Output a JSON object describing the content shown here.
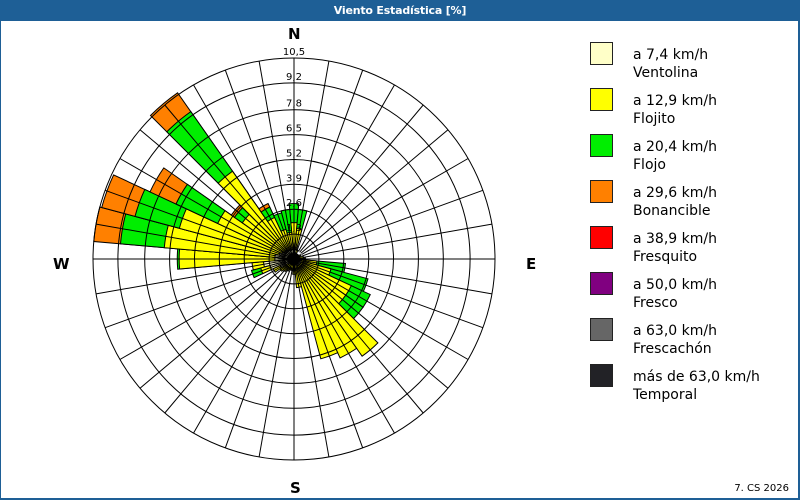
{
  "window": {
    "title": "Viento Estadística [%]",
    "footer": "7. CS 2026"
  },
  "compass": {
    "north": "N",
    "east": "E",
    "south": "S",
    "west": "W"
  },
  "legend": {
    "items": [
      {
        "range": "a 7,4 km/h",
        "name": "Ventolina",
        "color": "#ffffc8"
      },
      {
        "range": "a 12,9 km/h",
        "name": "Flojito",
        "color": "#ffff00"
      },
      {
        "range": "a 20,4 km/h",
        "name": "Flojo",
        "color": "#00ee00"
      },
      {
        "range": "a 29,6 km/h",
        "name": "Bonancible",
        "color": "#ff8000"
      },
      {
        "range": "a 38,9 km/h",
        "name": "Fresquito",
        "color": "#ff0000"
      },
      {
        "range": "a 50,0 km/h",
        "name": "Fresco",
        "color": "#800080"
      },
      {
        "range": "a 63,0 km/h",
        "name": "Frescachón",
        "color": "#666666"
      },
      {
        "range": "más de 63,0 km/h",
        "name": "Temporal",
        "color": "#222226"
      }
    ]
  },
  "chart_data": {
    "type": "wind-rose",
    "title": "Viento Estadística [%]",
    "unit": "%",
    "rings": [
      1.3,
      2.6,
      3.9,
      5.2,
      6.5,
      7.8,
      9.2,
      10.5
    ],
    "ring_labels": [
      "1,3",
      "2,6",
      "3,9",
      "5,2",
      "6,5",
      "7,8",
      "9,2",
      "10,5"
    ],
    "rmax": 10.5,
    "sector_width_deg": 10,
    "series_names": [
      "Ventolina",
      "Flojito",
      "Flojo",
      "Bonancible",
      "Fresquito",
      "Fresco",
      "Frescachón",
      "Temporal"
    ],
    "directions": [
      {
        "deg": 0,
        "cumulative": [
          0.5,
          1.9,
          2.9
        ]
      },
      {
        "deg": 10,
        "cumulative": [
          0.5,
          1.6,
          2.6
        ]
      },
      {
        "deg": 20,
        "cumulative": [
          0.3,
          0.5
        ]
      },
      {
        "deg": 30,
        "cumulative": [
          0.2,
          0.3
        ]
      },
      {
        "deg": 40,
        "cumulative": [
          0.2,
          0.3
        ]
      },
      {
        "deg": 50,
        "cumulative": [
          0.2,
          0.3
        ]
      },
      {
        "deg": 60,
        "cumulative": [
          0.2,
          0.4
        ]
      },
      {
        "deg": 70,
        "cumulative": [
          0.2,
          0.4
        ]
      },
      {
        "deg": 80,
        "cumulative": [
          0.2,
          0.5
        ]
      },
      {
        "deg": 90,
        "cumulative": [
          0.3,
          0.6
        ]
      },
      {
        "deg": 100,
        "cumulative": [
          0.4,
          1.2,
          2.7
        ]
      },
      {
        "deg": 110,
        "cumulative": [
          0.4,
          2.0,
          4.0
        ]
      },
      {
        "deg": 120,
        "cumulative": [
          0.4,
          3.3,
          4.4
        ]
      },
      {
        "deg": 130,
        "cumulative": [
          0.4,
          3.3,
          4.4
        ]
      },
      {
        "deg": 140,
        "cumulative": [
          0.4,
          6.2
        ]
      },
      {
        "deg": 150,
        "cumulative": [
          0.4,
          5.7
        ]
      },
      {
        "deg": 160,
        "cumulative": [
          0.4,
          5.4
        ]
      },
      {
        "deg": 170,
        "cumulative": [
          0.3,
          1.5
        ]
      },
      {
        "deg": 180,
        "cumulative": [
          0.3,
          0.8
        ]
      },
      {
        "deg": 190,
        "cumulative": [
          0.3,
          0.6
        ]
      },
      {
        "deg": 200,
        "cumulative": [
          0.3,
          0.6
        ]
      },
      {
        "deg": 210,
        "cumulative": [
          0.3,
          0.7
        ]
      },
      {
        "deg": 220,
        "cumulative": [
          0.3,
          0.8
        ]
      },
      {
        "deg": 230,
        "cumulative": [
          0.4,
          0.9
        ]
      },
      {
        "deg": 240,
        "cumulative": [
          0.8,
          1.2
        ]
      },
      {
        "deg": 250,
        "cumulative": [
          1.3,
          1.8,
          2.3
        ]
      },
      {
        "deg": 260,
        "cumulative": [
          1.6,
          2.2
        ]
      },
      {
        "deg": 270,
        "cumulative": [
          1.0,
          6.0,
          6.1
        ]
      },
      {
        "deg": 280,
        "cumulative": [
          1.0,
          6.8,
          9.1,
          10.5
        ]
      },
      {
        "deg": 290,
        "cumulative": [
          0.8,
          6.2,
          8.6,
          10.4
        ]
      },
      {
        "deg": 300,
        "cumulative": [
          0.7,
          4.4,
          6.8,
          8.3
        ]
      },
      {
        "deg": 310,
        "cumulative": [
          0.6,
          3.3,
          3.8,
          4.0
        ]
      },
      {
        "deg": 320,
        "cumulative": [
          0.6,
          5.6,
          9.4,
          10.6
        ]
      },
      {
        "deg": 330,
        "cumulative": [
          0.5,
          2.4,
          3.0,
          3.2
        ]
      },
      {
        "deg": 340,
        "cumulative": [
          0.5,
          1.6,
          2.5
        ]
      },
      {
        "deg": 350,
        "cumulative": [
          0.5,
          1.4,
          2.6
        ]
      }
    ]
  }
}
